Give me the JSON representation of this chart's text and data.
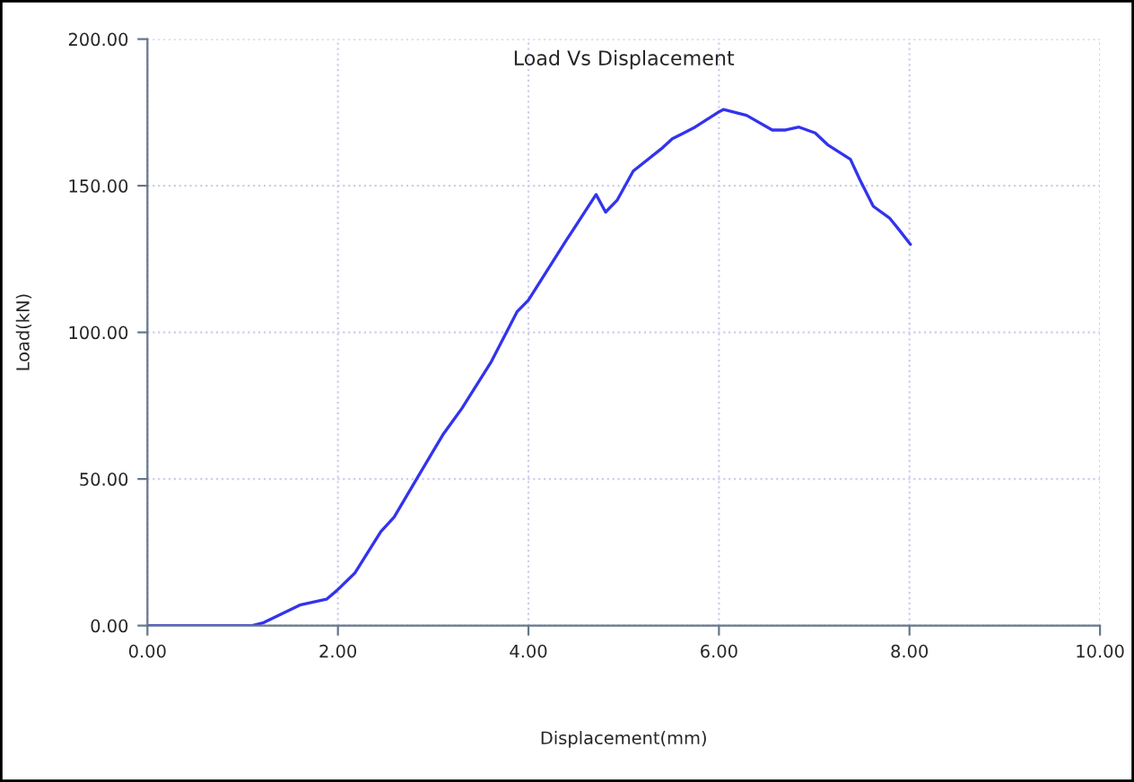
{
  "chart_data": {
    "type": "line",
    "title": "Load Vs Displacement",
    "xlabel": "Displacement(mm)",
    "ylabel": "Load(kN)",
    "series": [
      {
        "color": "#3333ee",
        "x": [
          0,
          0.55,
          1.1,
          1.22,
          1.6,
          1.88,
          1.99,
          2.18,
          2.45,
          2.59,
          2.79,
          3.1,
          3.3,
          3.61,
          3.88,
          4.0,
          4.39,
          4.71,
          4.81,
          4.93,
          5.1,
          5.41,
          5.51,
          5.75,
          5.99,
          6.05,
          6.29,
          6.56,
          6.7,
          6.84,
          7.01,
          7.14,
          7.38,
          7.48,
          7.62,
          7.79,
          7.89,
          8.01
        ],
        "values": [
          0,
          0,
          0,
          1,
          7,
          9,
          12,
          18,
          32,
          37,
          48,
          65,
          74,
          90,
          107,
          111,
          131,
          147,
          141,
          145,
          155,
          163,
          166,
          170,
          175,
          176,
          174,
          169,
          169,
          170,
          168,
          164,
          159,
          152,
          143,
          139,
          135,
          130
        ]
      }
    ],
    "xlim": [
      0,
      10
    ],
    "ylim": [
      0,
      200
    ],
    "xticks": [
      {
        "value": 0,
        "label": "0.00"
      },
      {
        "value": 2,
        "label": "2.00"
      },
      {
        "value": 4,
        "label": "4.00"
      },
      {
        "value": 6,
        "label": "6.00"
      },
      {
        "value": 8,
        "label": "8.00"
      },
      {
        "value": 10,
        "label": "10.00"
      }
    ],
    "yticks": [
      {
        "value": 0,
        "label": "0.00"
      },
      {
        "value": 50,
        "label": "50.00"
      },
      {
        "value": 100,
        "label": "100.00"
      },
      {
        "value": 150,
        "label": "150.00"
      },
      {
        "value": 200,
        "label": "200.00"
      }
    ],
    "grid": true,
    "legend": false,
    "marker": "none",
    "line_style": "solid"
  }
}
